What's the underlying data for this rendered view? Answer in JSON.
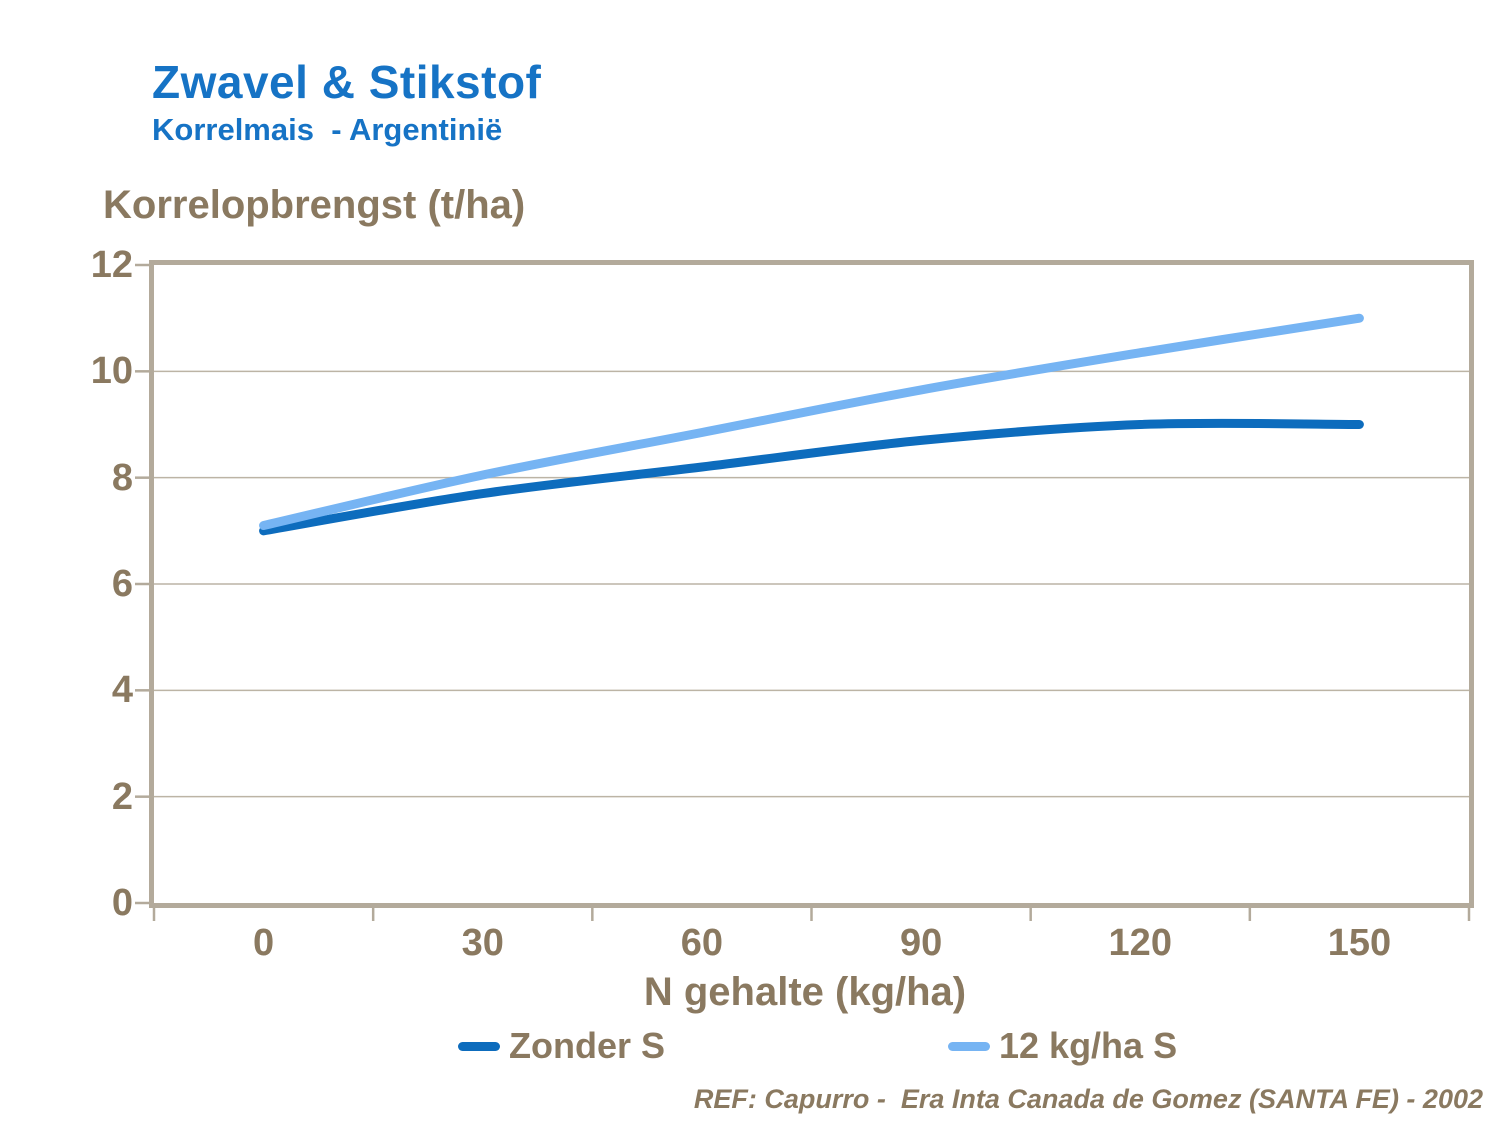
{
  "page": {
    "title": "Zwavel & Stikstof",
    "subtitle": "Korrelmais  - Argentinië",
    "reference": "REF: Capurro -  Era Inta Canada de Gomez (SANTA FE) - 2002"
  },
  "colors": {
    "title_blue": "#1673C5",
    "text_brown": "#8A7960",
    "plot_border": "#B3AA9B",
    "gridline": "#BCB4A5",
    "series_zonder_s": "#0D6CBD",
    "series_12kgha_s": "#76B4F3"
  },
  "chart_data": {
    "type": "line",
    "title": "Zwavel & Stikstof — Korrelmais - Argentinië",
    "ylabel": "Korrelopbrengst (t/ha)",
    "xlabel": "N gehalte (kg/ha)",
    "x": [
      0,
      30,
      60,
      90,
      120,
      150
    ],
    "xticklabels": [
      "0",
      "30",
      "60",
      "90",
      "120",
      "150"
    ],
    "yticks": [
      0,
      2,
      4,
      6,
      8,
      10,
      12
    ],
    "yticklabels": [
      "0",
      "2",
      "4",
      "6",
      "8",
      "10",
      "12"
    ],
    "ylim": [
      0,
      12
    ],
    "grid": "horizontal",
    "legend_position": "bottom",
    "line_style": "smooth",
    "series": [
      {
        "name": "Zonder S",
        "color": "#0D6CBD",
        "values": [
          7.0,
          7.7,
          8.2,
          8.7,
          9.0,
          9.0
        ]
      },
      {
        "name": "12 kg/ha S",
        "color": "#76B4F3",
        "values": [
          7.1,
          8.05,
          8.85,
          9.65,
          10.35,
          11.0
        ]
      }
    ]
  }
}
